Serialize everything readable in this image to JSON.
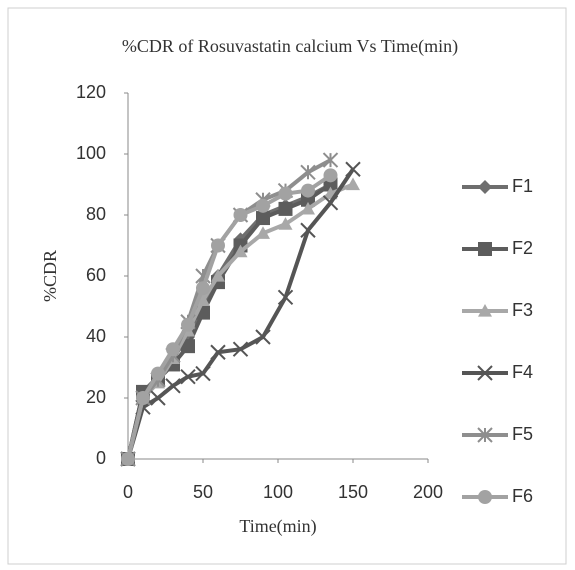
{
  "chart_data": {
    "type": "line",
    "title": "%CDR of Rosuvastatin calcium Vs Time(min)",
    "x_label": "Time(min)",
    "y_label": "%CDR",
    "x": [
      0,
      10,
      20,
      30,
      40,
      50,
      60,
      75,
      90,
      105,
      120,
      135,
      150
    ],
    "series": [
      {
        "name": "F1",
        "color": "#6e6e6e",
        "marker": "diamond",
        "values": [
          0,
          22,
          27,
          33,
          40,
          50,
          60,
          72,
          80,
          83,
          86,
          90,
          null
        ]
      },
      {
        "name": "F2",
        "color": "#5c5c5c",
        "marker": "square",
        "values": [
          0,
          22,
          26,
          31,
          37,
          48,
          58,
          70,
          79,
          82,
          85,
          90,
          null
        ]
      },
      {
        "name": "F3",
        "color": "#a8a8a8",
        "marker": "triangle",
        "values": [
          0,
          20,
          25,
          33,
          42,
          52,
          60,
          68,
          74,
          77,
          82,
          87,
          90
        ]
      },
      {
        "name": "F4",
        "color": "#555555",
        "marker": "x",
        "values": [
          0,
          17,
          20,
          24,
          27,
          28,
          35,
          36,
          40,
          53,
          75,
          84,
          95
        ]
      },
      {
        "name": "F5",
        "color": "#8e8e8e",
        "marker": "star",
        "values": [
          0,
          20,
          26,
          34,
          45,
          60,
          70,
          80,
          85,
          88,
          94,
          98,
          null
        ]
      },
      {
        "name": "F6",
        "color": "#a2a2a2",
        "marker": "circle",
        "values": [
          0,
          20,
          28,
          36,
          44,
          56,
          70,
          80,
          83,
          87,
          88,
          93,
          null
        ]
      }
    ],
    "xlim": [
      0,
      200
    ],
    "xticks": [
      0,
      50,
      100,
      150,
      200
    ],
    "ylim": [
      0,
      120
    ],
    "yticks": [
      0,
      20,
      40,
      60,
      80,
      100,
      120
    ],
    "legend": "right"
  }
}
